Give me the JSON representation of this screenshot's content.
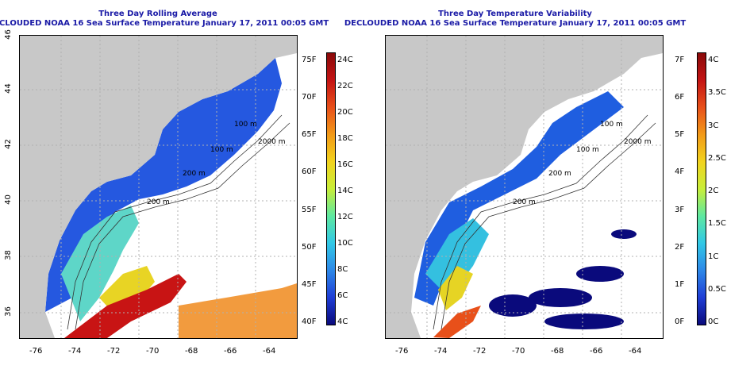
{
  "colors": {
    "land": "#c8c8c8",
    "water": "#ffffff",
    "title": "#1a1aa6",
    "contour": "#333333",
    "grid": "#b0b0b0"
  },
  "panels": [
    {
      "title": "Three Day Rolling Average",
      "subtitle": "DECLOUDED NOAA 16 Sea Surface Temperature January 17, 2011 00:05 GMT",
      "x_ticks": [
        "-76",
        "-74",
        "-72",
        "-70",
        "-68",
        "-66",
        "-64"
      ],
      "y_ticks": [
        "36",
        "38",
        "40",
        "42",
        "44",
        "46"
      ],
      "contours": [
        "100 m",
        "100 m",
        "200 m",
        "200 m",
        "2000 m"
      ],
      "colorbar": {
        "gradient": [
          "#0a0a7c",
          "#1f3ed6",
          "#2d88e8",
          "#31c8e6",
          "#5ee8a0",
          "#c8ee3a",
          "#f2d31e",
          "#f29a18",
          "#e8501a",
          "#c41414",
          "#8a0a0a"
        ],
        "fahrenheit": [
          "75F",
          "70F",
          "65F",
          "60F",
          "55F",
          "50F",
          "45F",
          "40F"
        ],
        "celsius": [
          "24C",
          "22C",
          "20C",
          "18C",
          "16C",
          "14C",
          "12C",
          "10C",
          "8C",
          "6C",
          "4C"
        ]
      }
    },
    {
      "title": "Three Day Temperature Variability",
      "subtitle": "DECLOUDED NOAA 16 Sea Surface Temperature January 17, 2011 00:05 GMT",
      "x_ticks": [
        "-76",
        "-74",
        "-72",
        "-70",
        "-68",
        "-66",
        "-64"
      ],
      "y_ticks": [
        "36",
        "38",
        "40",
        "42",
        "44",
        "46"
      ],
      "contours": [
        "100 m",
        "100 m",
        "200 m",
        "200 m",
        "2000 m"
      ],
      "colorbar": {
        "gradient": [
          "#0a0a7c",
          "#1f3ed6",
          "#2d88e8",
          "#31c8e6",
          "#5ee8a0",
          "#c8ee3a",
          "#f2d31e",
          "#f29a18",
          "#e8501a",
          "#c41414",
          "#8a0a0a"
        ],
        "fahrenheit": [
          "7F",
          "6F",
          "5F",
          "4F",
          "3F",
          "2F",
          "1F",
          "0F"
        ],
        "celsius": [
          "4C",
          "3.5C",
          "3C",
          "2.5C",
          "2C",
          "1.5C",
          "1C",
          "0.5C",
          "0C"
        ]
      }
    }
  ]
}
